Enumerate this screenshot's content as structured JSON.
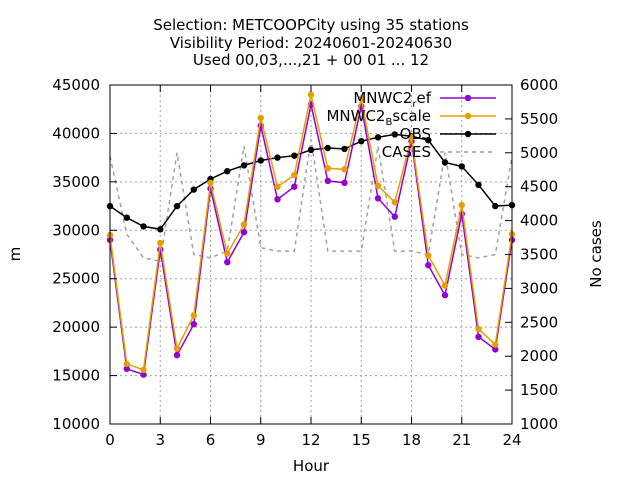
{
  "chart_data": {
    "type": "line",
    "title_lines": [
      "Selection: METCOOPCity using    35 stations",
      "Visibility   Period: 20240601-20240630",
      "Used 00,03,...,21 + 00 01 ... 12"
    ],
    "xlabel": "Hour",
    "ylabel": "m",
    "y2label": "No cases",
    "xlim": [
      0,
      24
    ],
    "ylim": [
      10000,
      45000
    ],
    "y2lim": [
      1000,
      6000
    ],
    "xticks": [
      0,
      3,
      6,
      9,
      12,
      15,
      18,
      21,
      24
    ],
    "yticks": [
      10000,
      15000,
      20000,
      25000,
      30000,
      35000,
      40000,
      45000
    ],
    "y2ticks": [
      1000,
      1500,
      2000,
      2500,
      3000,
      3500,
      4000,
      4500,
      5000,
      5500,
      6000
    ],
    "grid": true,
    "legend_position": "top-right",
    "x": [
      0,
      1,
      2,
      3,
      4,
      5,
      6,
      7,
      8,
      9,
      10,
      11,
      12,
      13,
      14,
      15,
      16,
      17,
      18,
      19,
      20,
      21,
      22,
      23,
      24
    ],
    "series": [
      {
        "legend_base": "MNWC2",
        "legend_sub": "r",
        "legend_tail": "ef",
        "color": "#9400d3",
        "axis": "y",
        "values": [
          29000,
          15700,
          15100,
          28000,
          17100,
          20300,
          34300,
          26700,
          29800,
          40800,
          33200,
          34500,
          43000,
          35100,
          34900,
          42800,
          33300,
          31400,
          39200,
          26400,
          23300,
          31700,
          19000,
          17700,
          29000
        ]
      },
      {
        "legend_base": "MNWC2",
        "legend_sub": "B",
        "legend_tail": "scale",
        "color": "#e69f00",
        "axis": "y",
        "values": [
          29500,
          16200,
          15600,
          28700,
          17800,
          21200,
          34900,
          27600,
          30600,
          41600,
          34500,
          35700,
          44000,
          36400,
          36300,
          43600,
          34600,
          32900,
          39600,
          27400,
          24300,
          32600,
          19800,
          18200,
          29600
        ]
      },
      {
        "legend_base": "OBS",
        "color": "#000000",
        "axis": "y",
        "values": [
          32500,
          31300,
          30400,
          30100,
          32500,
          34200,
          35300,
          36100,
          36700,
          37200,
          37500,
          37700,
          38300,
          38500,
          38400,
          39200,
          39600,
          39900,
          39700,
          39300,
          37000,
          36600,
          34700,
          32500,
          32600
        ]
      },
      {
        "legend_base": "CASES",
        "color": "#a0a0a0",
        "axis": "y2",
        "dashed": true,
        "values": [
          4950,
          3800,
          3450,
          3400,
          5000,
          3500,
          3450,
          3550,
          5100,
          3600,
          3550,
          3550,
          5200,
          3550,
          3550,
          3550,
          5100,
          3550,
          3550,
          3500,
          5000,
          3500,
          3450,
          3500,
          4950
        ]
      }
    ]
  }
}
